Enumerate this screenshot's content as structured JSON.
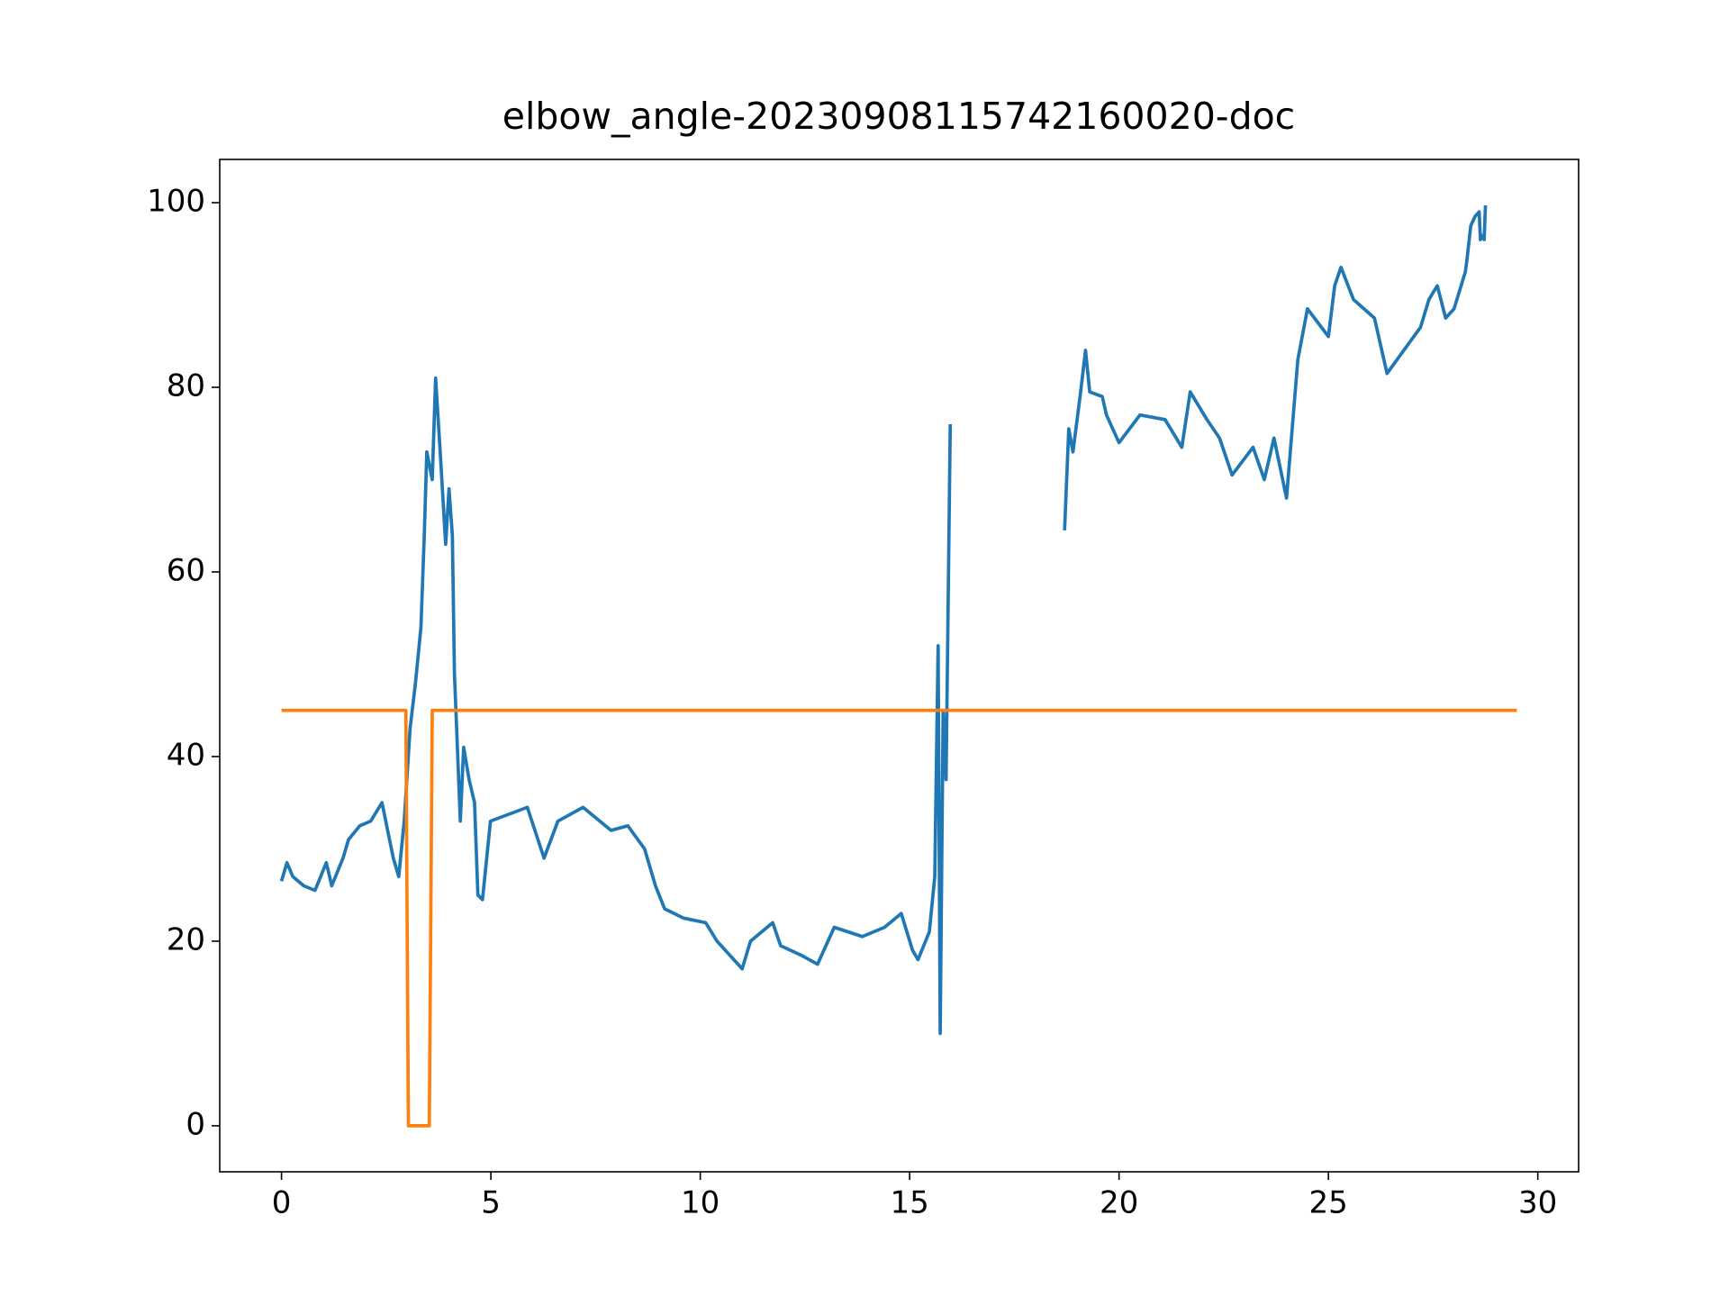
{
  "chart_data": {
    "type": "line",
    "title": "elbow_angle-20230908115742160020-doc",
    "xlim": [
      -1.475,
      30.975
    ],
    "ylim": [
      -4.985,
      104.685
    ],
    "xticks": [
      0,
      5,
      10,
      15,
      20,
      25,
      30
    ],
    "yticks": [
      0,
      20,
      40,
      60,
      80,
      100
    ],
    "series": [
      {
        "color": "#1f77b4",
        "x": [
          0,
          0.13,
          0.27,
          0.53,
          0.8,
          1.07,
          1.2,
          1.47,
          1.6,
          1.87,
          2.13,
          2.4,
          2.67,
          2.8,
          2.93,
          3.07,
          3.2,
          3.33,
          3.41,
          3.47,
          3.6,
          3.68,
          3.79,
          3.92,
          4.0,
          4.08,
          4.13,
          4.27,
          4.35,
          4.48,
          4.61,
          4.69,
          4.8,
          4.99,
          5.87,
          6.27,
          6.6,
          7.2,
          7.87,
          8.27,
          8.67,
          8.93,
          9.15,
          9.6,
          10.13,
          10.4,
          11.0,
          11.2,
          11.73,
          11.92,
          12.4,
          12.8,
          13.2,
          13.87,
          14.4,
          14.8,
          15.07,
          15.2,
          15.47,
          15.6,
          15.68,
          15.73,
          15.8,
          15.87,
          15.97,
          17.3,
          18.7,
          18.8,
          18.9,
          19.07,
          19.2,
          19.3,
          19.6,
          19.7,
          20.0,
          20.5,
          21.1,
          21.5,
          21.7,
          22.1,
          22.4,
          22.7,
          23.2,
          23.47,
          23.7,
          24.0,
          24.27,
          24.5,
          25.0,
          25.15,
          25.3,
          25.6,
          26.1,
          26.4,
          26.8,
          27.2,
          27.4,
          27.6,
          27.8,
          28.0,
          28.27,
          28.3,
          28.4,
          28.5,
          28.6,
          28.63,
          28.7,
          28.72,
          28.75
        ],
        "values": [
          26.5,
          28.5,
          27,
          26,
          25.5,
          28.5,
          26,
          29,
          31,
          32.5,
          33,
          35,
          29,
          27,
          33,
          43,
          48,
          54,
          64,
          73,
          70,
          81,
          73,
          63,
          69,
          64,
          49,
          33,
          41,
          37.5,
          35,
          25,
          24.5,
          33,
          34.5,
          29,
          33,
          34.5,
          32,
          32.5,
          30,
          26,
          23.5,
          22.5,
          22,
          20,
          17,
          20,
          22,
          19.5,
          18.5,
          17.5,
          21.5,
          20.5,
          21.5,
          23,
          19,
          18,
          21,
          27,
          52,
          10,
          45,
          37.5,
          76,
          null,
          64.5,
          75.5,
          73,
          79,
          84,
          79.5,
          79,
          77,
          74,
          77,
          76.5,
          73.5,
          79.5,
          76.5,
          74.5,
          70.5,
          73.5,
          70,
          74.5,
          68,
          83,
          88.5,
          85.5,
          91,
          93,
          89.5,
          87.5,
          81.5,
          84,
          86.5,
          89.5,
          91,
          87.5,
          88.5,
          92.5,
          93.5,
          97.5,
          98.5,
          99,
          96,
          96.5,
          96,
          99.7
        ]
      },
      {
        "color": "#ff7f0e",
        "x": [
          0,
          2.97,
          3.03,
          3.53,
          3.6,
          29.5
        ],
        "values": [
          45,
          45,
          0,
          0,
          45,
          45
        ]
      }
    ]
  }
}
